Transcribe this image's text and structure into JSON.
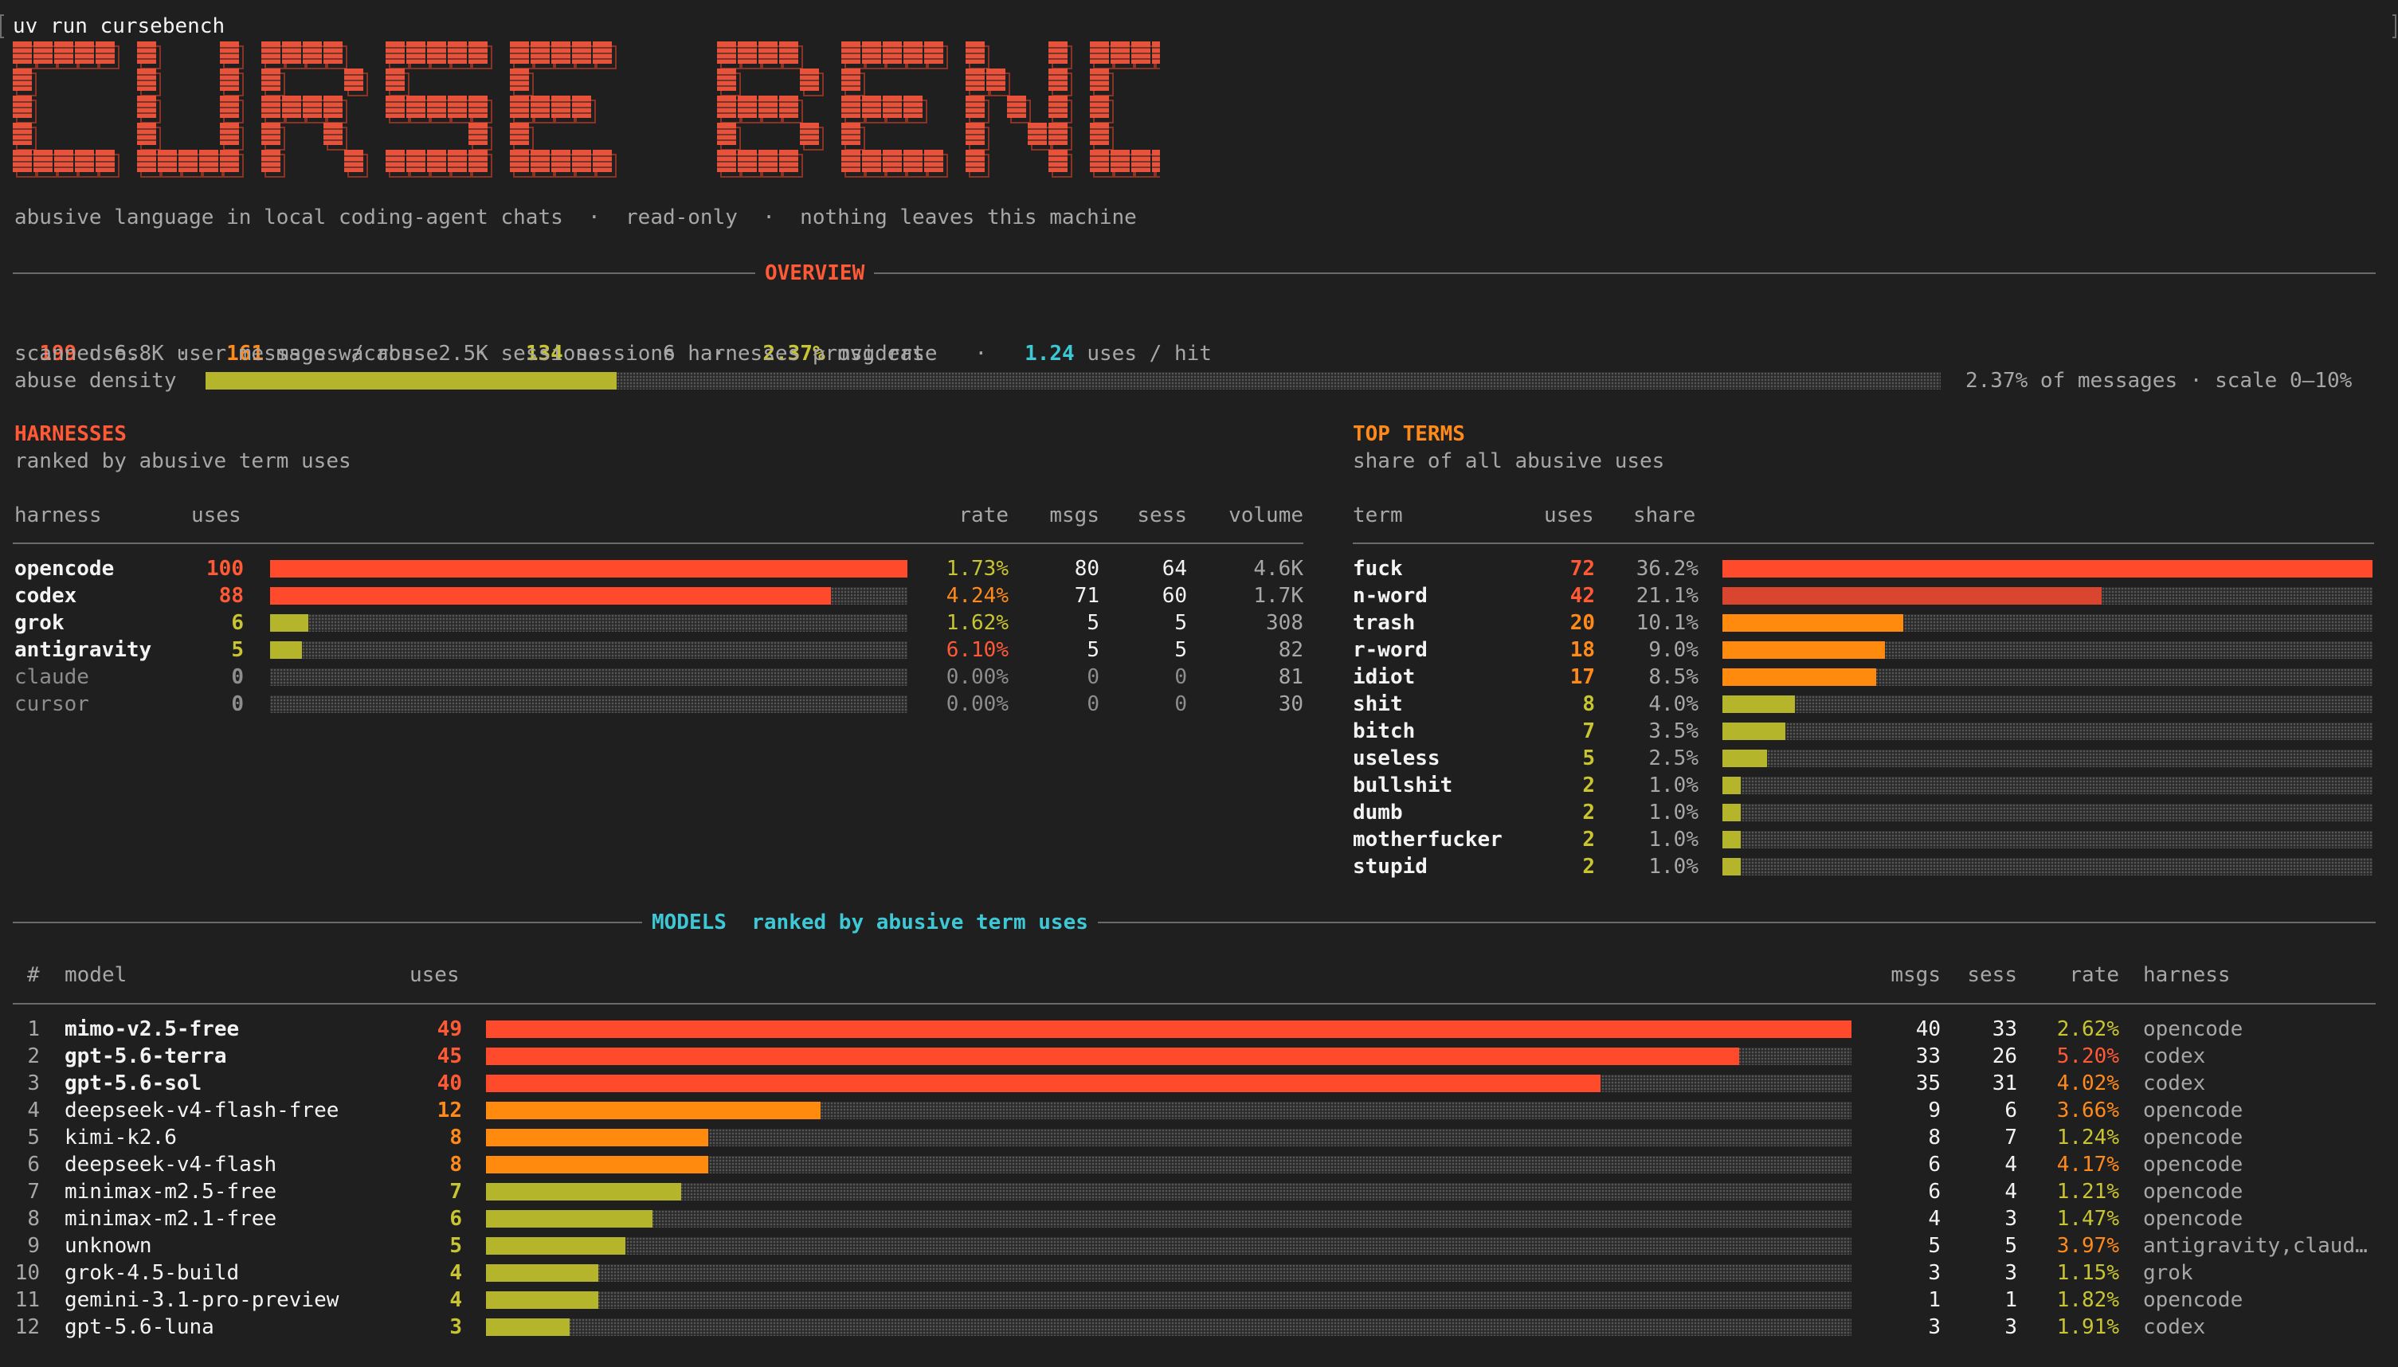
{
  "command": "uv run cursebench",
  "banner": "CURSE BENCH",
  "tagline": "abusive language in local coding-agent chats  ·  read-only  ·  nothing leaves this machine",
  "overview": {
    "title": "OVERVIEW",
    "uses": "199",
    "uses_label": " uses",
    "msgs": "161",
    "msgs_label": " msgs w/ abuse",
    "sessions": "134",
    "sessions_label": " sessions",
    "rate": "2.37%",
    "rate_label": " msg rate",
    "per_hit": "1.24",
    "per_hit_label": " uses / hit",
    "sep": "·",
    "scanned": "scanned 6.8K user messages across 2.5K sessions  ·  6 harnesses providers",
    "density_label": "abuse density",
    "density_fraction": 0.237,
    "density_text": "2.37% of messages · scale 0–10%"
  },
  "harnesses": {
    "title": "HARNESSES",
    "subtitle": "ranked by abusive term uses",
    "headers": {
      "harness": "harness",
      "uses": "uses",
      "rate": "rate",
      "msgs": "msgs",
      "sess": "sess",
      "volume": "volume"
    },
    "rows": [
      {
        "name": "opencode",
        "uses": "100",
        "fraction": 1.0,
        "rate": "1.73%",
        "msgs": "80",
        "sess": "64",
        "volume": "4.6K",
        "color": "#ff4a2b",
        "active": true
      },
      {
        "name": "codex",
        "uses": "88",
        "fraction": 0.88,
        "rate": "4.24%",
        "msgs": "71",
        "sess": "60",
        "volume": "1.7K",
        "color": "#ff4a2b",
        "active": true
      },
      {
        "name": "grok",
        "uses": "6",
        "fraction": 0.06,
        "rate": "1.62%",
        "msgs": "5",
        "sess": "5",
        "volume": "308",
        "color": "#b5b52b",
        "active": true
      },
      {
        "name": "antigravity",
        "uses": "5",
        "fraction": 0.05,
        "rate": "6.10%",
        "msgs": "5",
        "sess": "5",
        "volume": "82",
        "color": "#b5b52b",
        "active": true
      },
      {
        "name": "claude",
        "uses": "0",
        "fraction": 0,
        "rate": "0.00%",
        "msgs": "0",
        "sess": "0",
        "volume": "81",
        "color": "#b5b52b",
        "active": false
      },
      {
        "name": "cursor",
        "uses": "0",
        "fraction": 0,
        "rate": "0.00%",
        "msgs": "0",
        "sess": "0",
        "volume": "30",
        "color": "#b5b52b",
        "active": false
      }
    ]
  },
  "top_terms": {
    "title": "TOP TERMS",
    "subtitle": "share of all abusive uses",
    "headers": {
      "term": "term",
      "uses": "uses",
      "share": "share"
    },
    "rows": [
      {
        "term": "fuck",
        "uses": "72",
        "share": "36.2%",
        "fraction": 1.0,
        "color": "#ff4a2b"
      },
      {
        "term": "n-word",
        "uses": "42",
        "share": "21.1%",
        "fraction": 0.583,
        "color": "#d9452f"
      },
      {
        "term": "trash",
        "uses": "20",
        "share": "10.1%",
        "fraction": 0.278,
        "color": "#ff8a0e"
      },
      {
        "term": "r-word",
        "uses": "18",
        "share": "9.0%",
        "fraction": 0.25,
        "color": "#ff8a0e"
      },
      {
        "term": "idiot",
        "uses": "17",
        "share": "8.5%",
        "fraction": 0.236,
        "color": "#ff8a0e"
      },
      {
        "term": "shit",
        "uses": "8",
        "share": "4.0%",
        "fraction": 0.111,
        "color": "#b5b52b"
      },
      {
        "term": "bitch",
        "uses": "7",
        "share": "3.5%",
        "fraction": 0.097,
        "color": "#b5b52b"
      },
      {
        "term": "useless",
        "uses": "5",
        "share": "2.5%",
        "fraction": 0.069,
        "color": "#b5b52b"
      },
      {
        "term": "bullshit",
        "uses": "2",
        "share": "1.0%",
        "fraction": 0.028,
        "color": "#b5b52b"
      },
      {
        "term": "dumb",
        "uses": "2",
        "share": "1.0%",
        "fraction": 0.028,
        "color": "#b5b52b"
      },
      {
        "term": "motherfucker",
        "uses": "2",
        "share": "1.0%",
        "fraction": 0.028,
        "color": "#b5b52b"
      },
      {
        "term": "stupid",
        "uses": "2",
        "share": "1.0%",
        "fraction": 0.028,
        "color": "#b5b52b"
      }
    ]
  },
  "models": {
    "title": "MODELS",
    "subtitle": "ranked by abusive term uses",
    "headers": {
      "num": "#",
      "model": "model",
      "uses": "uses",
      "msgs": "msgs",
      "sess": "sess",
      "rate": "rate",
      "harness": "harness"
    },
    "rows": [
      {
        "n": "1",
        "model": "mimo-v2.5-free",
        "uses": "49",
        "fraction": 1.0,
        "msgs": "40",
        "sess": "33",
        "rate": "2.62%",
        "harness": "opencode",
        "color": "#ff4a2b",
        "bold": true
      },
      {
        "n": "2",
        "model": "gpt-5.6-terra",
        "uses": "45",
        "fraction": 0.918,
        "msgs": "33",
        "sess": "26",
        "rate": "5.20%",
        "harness": "codex",
        "color": "#ff4a2b",
        "bold": true
      },
      {
        "n": "3",
        "model": "gpt-5.6-sol",
        "uses": "40",
        "fraction": 0.816,
        "msgs": "35",
        "sess": "31",
        "rate": "4.02%",
        "harness": "codex",
        "color": "#ff4a2b",
        "bold": true
      },
      {
        "n": "4",
        "model": "deepseek-v4-flash-free",
        "uses": "12",
        "fraction": 0.245,
        "msgs": "9",
        "sess": "6",
        "rate": "3.66%",
        "harness": "opencode",
        "color": "#ff8a0e",
        "bold": false
      },
      {
        "n": "5",
        "model": "kimi-k2.6",
        "uses": "8",
        "fraction": 0.163,
        "msgs": "8",
        "sess": "7",
        "rate": "1.24%",
        "harness": "opencode",
        "color": "#ff8a0e",
        "bold": false
      },
      {
        "n": "6",
        "model": "deepseek-v4-flash",
        "uses": "8",
        "fraction": 0.163,
        "msgs": "6",
        "sess": "4",
        "rate": "4.17%",
        "harness": "opencode",
        "color": "#ff8a0e",
        "bold": false
      },
      {
        "n": "7",
        "model": "minimax-m2.5-free",
        "uses": "7",
        "fraction": 0.143,
        "msgs": "6",
        "sess": "4",
        "rate": "1.21%",
        "harness": "opencode",
        "color": "#b5b52b",
        "bold": false
      },
      {
        "n": "8",
        "model": "minimax-m2.1-free",
        "uses": "6",
        "fraction": 0.122,
        "msgs": "4",
        "sess": "3",
        "rate": "1.47%",
        "harness": "opencode",
        "color": "#b5b52b",
        "bold": false
      },
      {
        "n": "9",
        "model": "unknown",
        "uses": "5",
        "fraction": 0.102,
        "msgs": "5",
        "sess": "5",
        "rate": "3.97%",
        "harness": "antigravity,claud…",
        "color": "#b5b52b",
        "bold": false
      },
      {
        "n": "10",
        "model": "grok-4.5-build",
        "uses": "4",
        "fraction": 0.082,
        "msgs": "3",
        "sess": "3",
        "rate": "1.15%",
        "harness": "grok",
        "color": "#b5b52b",
        "bold": false
      },
      {
        "n": "11",
        "model": "gemini-3.1-pro-preview",
        "uses": "4",
        "fraction": 0.082,
        "msgs": "1",
        "sess": "1",
        "rate": "1.82%",
        "harness": "opencode",
        "color": "#b5b52b",
        "bold": false
      },
      {
        "n": "12",
        "model": "gpt-5.6-luna",
        "uses": "3",
        "fraction": 0.061,
        "msgs": "3",
        "sess": "3",
        "rate": "1.91%",
        "harness": "codex",
        "color": "#b5b52b",
        "bold": false
      }
    ]
  },
  "colors": {
    "red": "#ff5a35",
    "orange": "#ff8a1c",
    "yellow": "#c9c431",
    "cyan": "#3ec8d6",
    "banner": "#e8513a"
  }
}
